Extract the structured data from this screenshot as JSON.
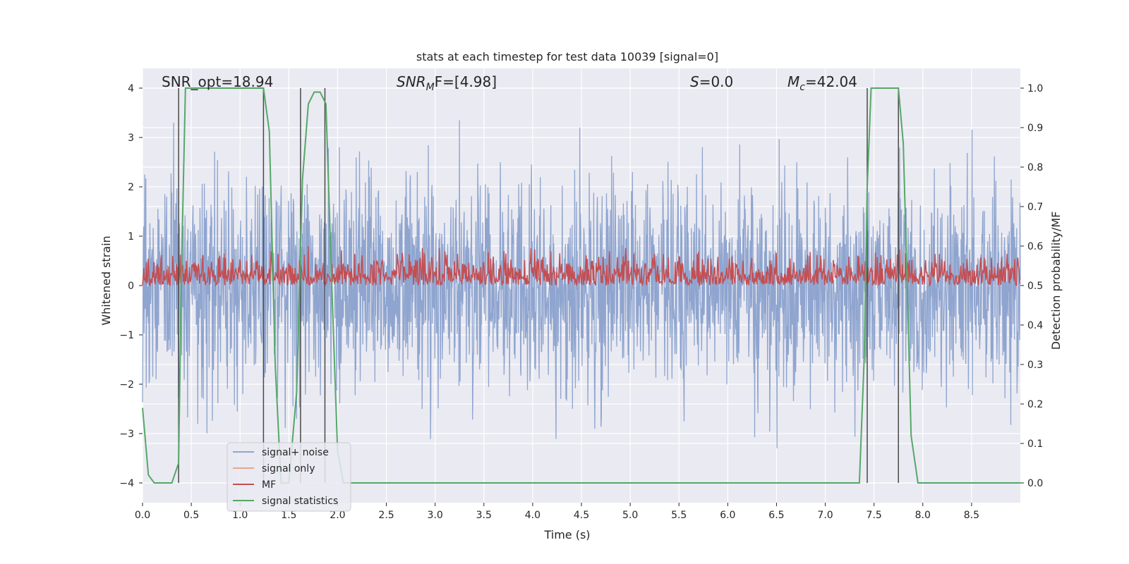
{
  "chart_data": {
    "type": "line",
    "title": "stats at each timestep for test data 10039 [signal=0]",
    "xlabel": "Time (s)",
    "ylabel_left": "Whitened strain",
    "ylabel_right": "Detection probability/MF",
    "xlim": [
      0,
      9.0
    ],
    "ylim_left": [
      -4.4,
      4.4
    ],
    "ylim_right": [
      -0.05,
      1.05
    ],
    "x_ticks": [
      0,
      0.5,
      1,
      1.5,
      2,
      2.5,
      3,
      3.5,
      4,
      4.5,
      5,
      5.5,
      6,
      6.5,
      7,
      7.5,
      8,
      8.5
    ],
    "x_tick_labels": [
      "0.0",
      "0.5",
      "1.0",
      "1.5",
      "2.0",
      "2.5",
      "3.0",
      "3.5",
      "4.0",
      "4.5",
      "5.0",
      "5.5",
      "6.0",
      "6.5",
      "7.0",
      "7.5",
      "8.0",
      "8.5"
    ],
    "y_left_ticks": [
      4,
      3,
      2,
      1,
      0,
      -1,
      -2,
      -3,
      -4
    ],
    "y_left_tick_labels": [
      "4",
      "3",
      "2",
      "1",
      "0",
      "−1",
      "−2",
      "−3",
      "−4"
    ],
    "y_right_ticks": [
      1.0,
      0.9,
      0.8,
      0.7,
      0.6,
      0.5,
      0.4,
      0.3,
      0.2,
      0.1,
      0.0
    ],
    "y_right_tick_labels": [
      "1.0",
      "0.9",
      "0.8",
      "0.7",
      "0.6",
      "0.5",
      "0.4",
      "0.3",
      "0.2",
      "0.1",
      "0.0"
    ],
    "grid": true,
    "annotations": {
      "snr_opt": "SNR_opt=18.94",
      "snr_mf_main": "SNR",
      "snr_mf_sub": "M",
      "snr_mf_rest": "F=[4.98]",
      "s_main": "S",
      "s_rest": "=0.0",
      "mc_main": "M",
      "mc_sub": "c",
      "mc_rest": "=42.04"
    },
    "legend": {
      "position": "lower-left",
      "entries": [
        {
          "label": "signal+ noise",
          "color": "#8fa5cf"
        },
        {
          "label": "signal only",
          "color": "#e8a78a"
        },
        {
          "label": "MF",
          "color": "#c44e52"
        },
        {
          "label": "signal statistics",
          "color": "#55a868"
        }
      ]
    },
    "series": [
      {
        "name": "signal+ noise",
        "axis": "left",
        "description": "whitened strain noise, amplitude roughly within -3.8 to 3.4",
        "amplitude_range": [
          -3.8,
          3.4
        ]
      },
      {
        "name": "MF",
        "axis": "right",
        "description": "matched filter output, hovering around 0.5-0.58",
        "range": [
          0.5,
          0.58
        ]
      },
      {
        "name": "signal statistics",
        "axis": "right",
        "x": [
          0.0,
          0.06,
          0.12,
          0.2,
          0.3,
          0.37,
          0.4,
          0.44,
          0.5,
          1.0,
          1.24,
          1.3,
          1.36,
          1.42,
          1.5,
          1.58,
          1.64,
          1.7,
          1.76,
          1.82,
          1.88,
          1.94,
          2.0,
          2.06,
          2.2,
          2.5,
          3.0,
          7.35,
          7.4,
          7.43,
          7.47,
          7.5,
          7.75,
          7.8,
          7.84,
          7.88,
          7.95,
          8.1,
          8.5,
          9.0
        ],
        "y": [
          0.19,
          0.02,
          0.0,
          0.0,
          0.0,
          0.05,
          0.55,
          1.0,
          1.0,
          1.0,
          1.0,
          0.89,
          0.3,
          0.0,
          0.0,
          0.23,
          0.77,
          0.96,
          0.99,
          0.99,
          0.96,
          0.5,
          0.08,
          0.0,
          0.0,
          0.0,
          0.0,
          0.0,
          0.32,
          0.75,
          1.0,
          1.0,
          1.0,
          0.86,
          0.5,
          0.12,
          0.0,
          0.0,
          0.0,
          0.0
        ]
      }
    ],
    "vertical_lines_x": [
      0.37,
      1.24,
      1.62,
      1.87,
      7.43,
      7.75
    ],
    "colors": {
      "background": "#eaeaf2",
      "grid": "#ffffff",
      "noise": "#8fa5cf",
      "mf": "#c44e52",
      "stat": "#55a868",
      "vline": "#4a4a4a"
    }
  }
}
